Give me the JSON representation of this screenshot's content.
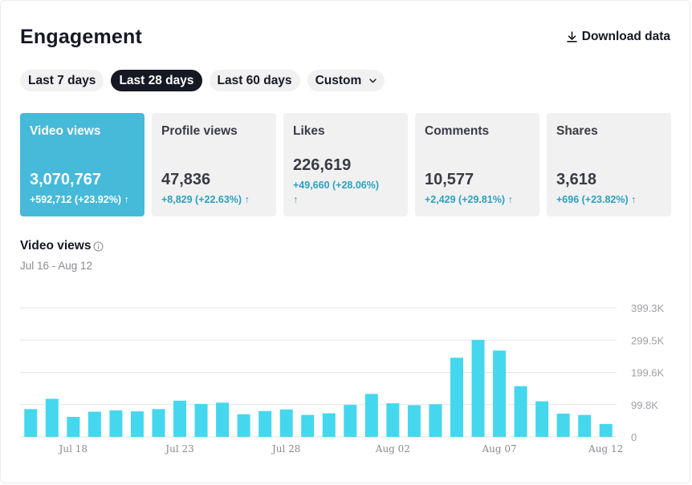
{
  "header": {
    "title": "Engagement",
    "download_label": "Download data"
  },
  "tabs": [
    {
      "label": "Last 7 days",
      "active": false
    },
    {
      "label": "Last 28 days",
      "active": true
    },
    {
      "label": "Last 60 days",
      "active": false
    },
    {
      "label": "Custom",
      "active": false
    }
  ],
  "metrics": [
    {
      "label": "Video views",
      "value": "3,070,767",
      "change": "+592,712 (+23.92%)",
      "active": true
    },
    {
      "label": "Profile views",
      "value": "47,836",
      "change": "+8,829 (+22.63%)",
      "active": false
    },
    {
      "label": "Likes",
      "value": "226,619",
      "change": "+49,660 (+28.06%)",
      "active": false
    },
    {
      "label": "Comments",
      "value": "10,577",
      "change": "+2,429 (+29.81%)",
      "active": false
    },
    {
      "label": "Shares",
      "value": "3,618",
      "change": "+696 (+23.82%)",
      "active": false
    }
  ],
  "chart_section": {
    "title": "Video views",
    "date_range": "Jul 16 - Aug 12"
  },
  "colors": {
    "bar": "#45d7ed",
    "active_card": "#47b9d9",
    "change_text": "#2aa1c0",
    "active_tab": "#161823"
  },
  "icons": {
    "download": "download-icon",
    "info": "info-icon",
    "custom_dropdown": "chevron-down-icon",
    "change_trend": "arrow-up-icon"
  },
  "chart_data": {
    "type": "bar",
    "title": "",
    "xlabel": "",
    "ylabel": "",
    "categories": [
      "Jul 16",
      "Jul 17",
      "Jul 18",
      "Jul 19",
      "Jul 20",
      "Jul 21",
      "Jul 22",
      "Jul 23",
      "Jul 24",
      "Jul 25",
      "Jul 26",
      "Jul 27",
      "Jul 28",
      "Jul 29",
      "Jul 30",
      "Jul 31",
      "Aug 01",
      "Aug 02",
      "Aug 03",
      "Aug 04",
      "Aug 05",
      "Aug 06",
      "Aug 07",
      "Aug 08",
      "Aug 09",
      "Aug 10",
      "Aug 11",
      "Aug 12"
    ],
    "x_tick_labels": [
      "Jul 18",
      "Jul 23",
      "Jul 28",
      "Aug 02",
      "Aug 07",
      "Aug 12"
    ],
    "values": [
      86000,
      118000,
      62000,
      78000,
      82000,
      79000,
      86000,
      112000,
      102000,
      106000,
      70000,
      80000,
      85000,
      68000,
      73000,
      99000,
      133000,
      104000,
      98000,
      101000,
      245000,
      300000,
      267000,
      157000,
      110000,
      72000,
      68000,
      40000
    ],
    "y_ticks": [
      "0",
      "99.8K",
      "199.6K",
      "299.5K",
      "399.3K"
    ],
    "ylim": [
      0,
      399300
    ],
    "grid": true
  }
}
